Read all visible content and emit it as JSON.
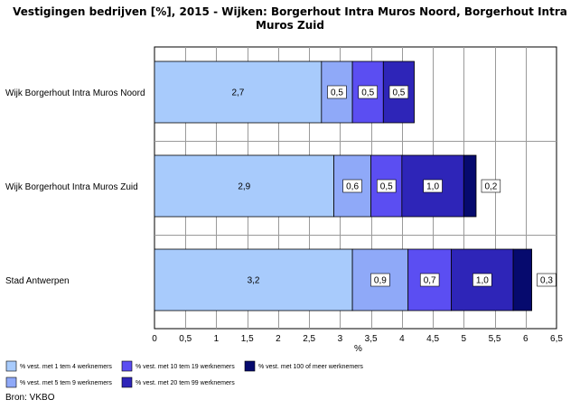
{
  "chart_data": {
    "type": "bar",
    "orientation": "horizontal",
    "stacked": true,
    "title_line1": "Vestigingen bedrijven [%], 2015 - Wijken: Borgerhout Intra Muros Noord, Borgerhout Intra",
    "title_line2": "Muros Zuid",
    "xlabel": "%",
    "xlim": [
      0,
      6.5
    ],
    "xticks": [
      "0",
      "0,5",
      "1",
      "1,5",
      "2",
      "2,5",
      "3",
      "3,5",
      "4",
      "4,5",
      "5",
      "5,5",
      "6",
      "6,5"
    ],
    "grid": true,
    "legend_position": "bottom",
    "categories": [
      "Wijk Borgerhout Intra Muros Noord",
      "Wijk Borgerhout Intra Muros Zuid",
      "Stad Antwerpen"
    ],
    "series": [
      {
        "name": "% vest. met 1 tem 4 werknemers",
        "color": "#a8cbfc",
        "values": [
          2.7,
          2.9,
          3.2
        ],
        "labels": [
          "2,7",
          "2,9",
          "3,2"
        ]
      },
      {
        "name": "% vest. met 5 tem 9 werknemers",
        "color": "#8fa9f8",
        "values": [
          0.5,
          0.6,
          0.9
        ],
        "labels": [
          "0,5",
          "0,6",
          "0,9"
        ]
      },
      {
        "name": "% vest. met 10 tem 19 werknemers",
        "color": "#5b4ef2",
        "values": [
          0.5,
          0.5,
          0.7
        ],
        "labels": [
          "0,5",
          "0,5",
          "0,7"
        ]
      },
      {
        "name": "% vest. met 20 tem 99 werknemers",
        "color": "#2e25b8",
        "values": [
          0.5,
          1.0,
          1.0
        ],
        "labels": [
          "0,5",
          "1,0",
          "1,0"
        ]
      },
      {
        "name": "% vest. met 100 of meer werknemers",
        "color": "#060a6e",
        "values": [
          0,
          0.2,
          0.3
        ],
        "labels": [
          "",
          "0,2",
          "0,3"
        ]
      }
    ]
  },
  "source": "Bron: VKBO"
}
